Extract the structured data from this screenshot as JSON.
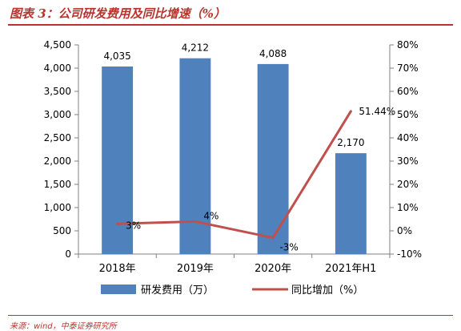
{
  "header": {
    "title": "图表 3：公司研发费用及同比增速（%）",
    "source": "来源：wind，中泰证券研究所"
  },
  "colors": {
    "bar": "#4f81bd",
    "line": "#c0504d",
    "accent": "#b8342d"
  },
  "chart_data": {
    "type": "bar",
    "categories": [
      "2018年",
      "2019年",
      "2020年",
      "2021年H1"
    ],
    "series": [
      {
        "name": "研发费用（万）",
        "type": "bar",
        "axis": "left",
        "values": [
          4035,
          4212,
          4088,
          2170
        ],
        "labels": [
          "4,035",
          "4,212",
          "4,088",
          "2,170"
        ]
      },
      {
        "name": "同比增加（%）",
        "type": "line",
        "axis": "right",
        "values": [
          3,
          4,
          -3,
          51.44
        ],
        "labels": [
          "3%",
          "4%",
          "-3%",
          "51.44%"
        ]
      }
    ],
    "y_left": {
      "lim": [
        0,
        4500
      ],
      "ticks": [
        "0",
        "500",
        "1,000",
        "1,500",
        "2,000",
        "2,500",
        "3,000",
        "3,500",
        "4,000",
        "4,500"
      ]
    },
    "y_right": {
      "lim": [
        -10,
        80
      ],
      "ticks": [
        "-10%",
        "0%",
        "10%",
        "20%",
        "30%",
        "40%",
        "50%",
        "60%",
        "70%",
        "80%"
      ]
    },
    "grid": false,
    "legend": "bottom"
  }
}
